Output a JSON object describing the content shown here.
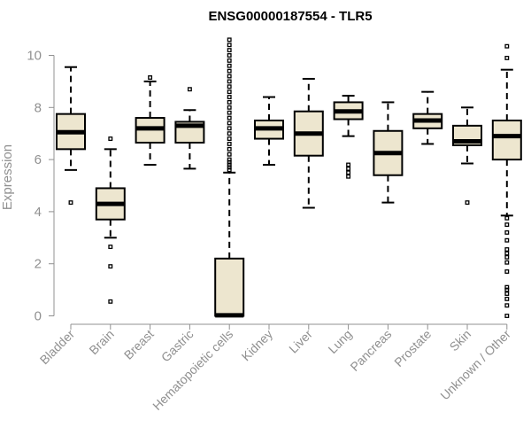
{
  "chart_data": {
    "type": "boxplot",
    "title": "ENSG00000187554 - TLR5",
    "xlabel": "",
    "ylabel": "Expression",
    "ylim": [
      0,
      10.6
    ],
    "yticks": [
      0,
      2,
      4,
      6,
      8,
      10
    ],
    "box_color": "#ede6cf",
    "categories": [
      "Bladder",
      "Brain",
      "Breast",
      "Gastric",
      "Hematopoietic cells",
      "Kidney",
      "Liver",
      "Lung",
      "Pancreas",
      "Prostate",
      "Skin",
      "Unknown / Other"
    ],
    "boxes": [
      {
        "name": "Bladder",
        "min": 5.6,
        "q1": 6.4,
        "median": 7.05,
        "q3": 7.75,
        "max": 9.55,
        "outliers": [
          4.35
        ]
      },
      {
        "name": "Brain",
        "min": 3.0,
        "q1": 3.7,
        "median": 4.3,
        "q3": 4.9,
        "max": 6.4,
        "outliers": [
          6.8,
          2.65,
          1.9,
          0.55
        ]
      },
      {
        "name": "Breast",
        "min": 5.8,
        "q1": 6.65,
        "median": 7.2,
        "q3": 7.6,
        "max": 9.0,
        "outliers": [
          9.15
        ]
      },
      {
        "name": "Gastric",
        "min": 5.65,
        "q1": 6.65,
        "median": 7.3,
        "q3": 7.45,
        "max": 7.9,
        "outliers": [
          8.7
        ]
      },
      {
        "name": "Hematopoietic cells",
        "min": 0.0,
        "q1": 0.0,
        "median": 0.02,
        "q3": 2.2,
        "max": 5.5,
        "outliers": [
          10.6,
          10.4,
          10.2,
          10.0,
          9.8,
          9.6,
          9.4,
          9.2,
          9.0,
          8.8,
          8.6,
          8.4,
          8.2,
          8.0,
          7.8,
          7.6,
          7.4,
          7.2,
          7.0,
          6.8,
          6.6,
          6.4,
          6.2,
          6.0,
          5.9,
          5.8,
          5.7,
          5.6
        ]
      },
      {
        "name": "Kidney",
        "min": 5.8,
        "q1": 6.8,
        "median": 7.2,
        "q3": 7.5,
        "max": 8.4,
        "outliers": []
      },
      {
        "name": "Liver",
        "min": 4.15,
        "q1": 6.15,
        "median": 7.0,
        "q3": 7.85,
        "max": 9.1,
        "outliers": []
      },
      {
        "name": "Lung",
        "min": 6.9,
        "q1": 7.55,
        "median": 7.85,
        "q3": 8.2,
        "max": 8.45,
        "outliers": [
          5.8,
          5.65,
          5.5,
          5.35
        ]
      },
      {
        "name": "Pancreas",
        "min": 4.35,
        "q1": 5.4,
        "median": 6.25,
        "q3": 7.1,
        "max": 8.2,
        "outliers": []
      },
      {
        "name": "Prostate",
        "min": 6.6,
        "q1": 7.2,
        "median": 7.5,
        "q3": 7.75,
        "max": 8.6,
        "outliers": []
      },
      {
        "name": "Skin",
        "min": 5.85,
        "q1": 6.55,
        "median": 6.7,
        "q3": 7.3,
        "max": 8.0,
        "outliers": [
          4.35
        ]
      },
      {
        "name": "Unknown / Other",
        "min": 3.85,
        "q1": 6.0,
        "median": 6.9,
        "q3": 7.5,
        "max": 9.45,
        "outliers": [
          10.35,
          9.9,
          3.75,
          3.5,
          3.2,
          2.9,
          2.55,
          2.4,
          2.25,
          2.05,
          1.7,
          1.1,
          1.0,
          0.85,
          0.65,
          0.4,
          0.0
        ]
      }
    ]
  }
}
